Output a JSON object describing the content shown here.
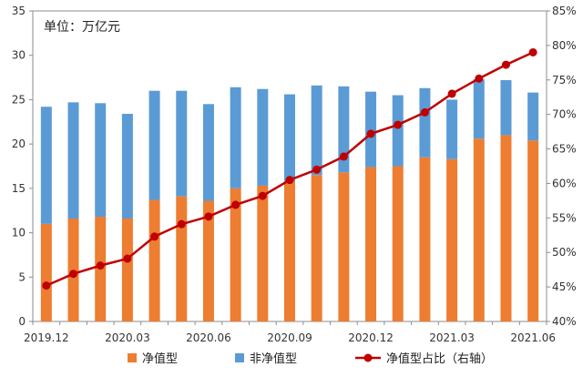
{
  "chart_data": {
    "type": "bar",
    "stacked": true,
    "unit_label": "单位：万亿元",
    "categories": [
      "2019.12",
      "2020.01",
      "2020.02",
      "2020.03",
      "2020.04",
      "2020.05",
      "2020.06",
      "2020.07",
      "2020.08",
      "2020.09",
      "2020.10",
      "2020.11",
      "2020.12",
      "2021.01",
      "2021.02",
      "2021.03",
      "2021.04",
      "2021.05",
      "2021.06"
    ],
    "x_tick_labels": [
      {
        "index": 0,
        "label": "2019.12"
      },
      {
        "index": 3,
        "label": "2020.03"
      },
      {
        "index": 6,
        "label": "2020.06"
      },
      {
        "index": 9,
        "label": "2020.09"
      },
      {
        "index": 12,
        "label": "2020.12"
      },
      {
        "index": 15,
        "label": "2021.03"
      },
      {
        "index": 18,
        "label": "2021.06"
      }
    ],
    "series": [
      {
        "name": "净值型",
        "color": "#ED7D31",
        "axis": "left",
        "values": [
          11.0,
          11.6,
          11.8,
          11.6,
          13.7,
          14.1,
          13.6,
          15.0,
          15.3,
          15.8,
          16.5,
          16.8,
          17.4,
          17.5,
          18.5,
          18.3,
          20.6,
          21.0,
          20.4
        ]
      },
      {
        "name": "非净值型",
        "color": "#5B9BD5",
        "axis": "left",
        "values": [
          13.2,
          13.1,
          12.8,
          11.8,
          12.3,
          11.9,
          10.9,
          11.4,
          10.9,
          9.8,
          10.1,
          9.7,
          8.5,
          8.0,
          7.8,
          6.7,
          6.7,
          6.2,
          5.4
        ]
      },
      {
        "name": "净值型占比（右轴）",
        "type": "line",
        "color": "#C00000",
        "axis": "right",
        "values": [
          45.2,
          46.9,
          48.1,
          49.1,
          52.3,
          54.1,
          55.2,
          56.9,
          58.2,
          60.5,
          62.0,
          63.9,
          67.2,
          68.5,
          70.3,
          73.0,
          75.2,
          77.2,
          79.0
        ]
      }
    ],
    "y_left": {
      "min": 0,
      "max": 35,
      "step": 5,
      "ticks": [
        "0",
        "5",
        "10",
        "15",
        "20",
        "25",
        "30",
        "35"
      ]
    },
    "y_right": {
      "min": 40,
      "max": 85,
      "step": 5,
      "ticks": [
        "40%",
        "45%",
        "50%",
        "55%",
        "60%",
        "65%",
        "70%",
        "75%",
        "80%",
        "85%"
      ]
    },
    "grid": false,
    "legend_position": "bottom"
  },
  "legend": [
    {
      "label": "净值型",
      "kind": "bar",
      "color": "#ED7D31"
    },
    {
      "label": "非净值型",
      "kind": "bar",
      "color": "#5B9BD5"
    },
    {
      "label": "净值型占比（右轴）",
      "kind": "line",
      "color": "#C00000"
    }
  ]
}
